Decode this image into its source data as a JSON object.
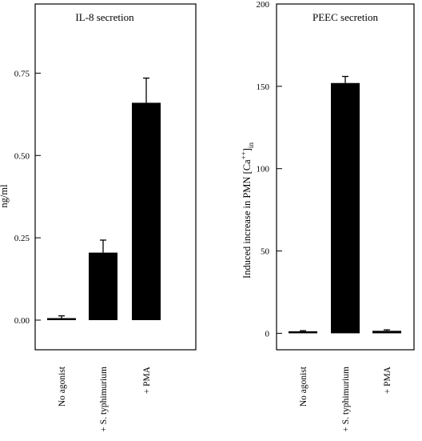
{
  "chart_data": [
    {
      "type": "bar",
      "title": "IL-8 secretion",
      "xlabel": "",
      "ylabel": "ng/ml",
      "categories": [
        "No agonist",
        "+ S. typhimurium",
        "+ PMA"
      ],
      "values": [
        0.005,
        0.205,
        0.66
      ],
      "errors": [
        0.008,
        0.038,
        0.075
      ],
      "ylim": [
        -0.09,
        0.96
      ],
      "yticks": [
        "0.00",
        "0.25",
        "0.50",
        "0.75"
      ],
      "grid": false,
      "legend": "none",
      "bar_color": "#000000"
    },
    {
      "type": "bar",
      "title": "PEEC secretion",
      "xlabel": "",
      "ylabel": "Induced increase in PMN [Ca",
      "ylabel_sup": "++",
      "ylabel_bracket": "]",
      "ylabel_sub": "in",
      "categories": [
        "No agonist",
        "+ S. typhimurium",
        "+ PMA"
      ],
      "values": [
        1,
        152,
        1.5
      ],
      "errors": [
        0.6,
        4,
        0.6
      ],
      "ylim": [
        -10,
        200
      ],
      "yticks": [
        "0",
        "50",
        "100",
        "150",
        "200"
      ],
      "grid": false,
      "legend": "none",
      "bar_color": "#000000"
    }
  ]
}
